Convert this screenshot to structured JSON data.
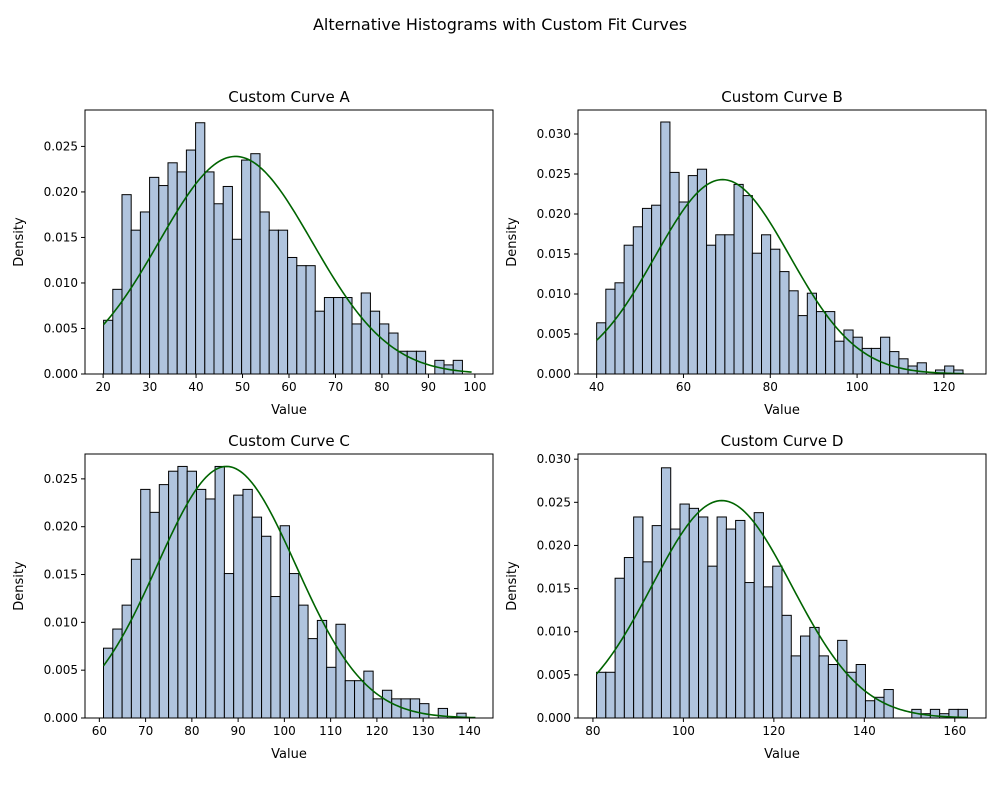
{
  "figure": {
    "suptitle": "Alternative Histograms with Custom Fit Curves",
    "bar_fill": "#b0c4de",
    "bar_edge": "#000000",
    "curve_color": "#006400"
  },
  "chart_data": [
    {
      "type": "histogram",
      "title": "Custom Curve A",
      "xlabel": "Value",
      "ylabel": "Density",
      "xlim": [
        16.1,
        103.9
      ],
      "ylim": [
        0,
        0.029
      ],
      "xticks": [
        "20",
        "30",
        "40",
        "50",
        "60",
        "70",
        "80",
        "90",
        "100"
      ],
      "yticks": [
        "0.000",
        "0.005",
        "0.010",
        "0.015",
        "0.020",
        "0.025"
      ],
      "bins": {
        "start": 20.1,
        "width": 1.98,
        "values": [
          0.0059,
          0.0093,
          0.0197,
          0.0158,
          0.0178,
          0.0216,
          0.0207,
          0.0232,
          0.0222,
          0.0246,
          0.0276,
          0.0222,
          0.0187,
          0.0206,
          0.0148,
          0.0235,
          0.0242,
          0.0178,
          0.0158,
          0.0158,
          0.0128,
          0.0119,
          0.0119,
          0.0069,
          0.0084,
          0.0084,
          0.0084,
          0.0055,
          0.0089,
          0.0069,
          0.0055,
          0.0045,
          0.0025,
          0.0025,
          0.0025,
          0.0,
          0.0015,
          0.001,
          0.0015,
          0.0
        ]
      },
      "fit_curve": {
        "name": "",
        "shape": "gaussian",
        "mean": 48.5,
        "sd": 16.5,
        "peak": 0.0239,
        "range": [
          20.1,
          99.3
        ]
      }
    },
    {
      "type": "histogram",
      "title": "Custom Curve B",
      "xlabel": "Value",
      "ylabel": "Density",
      "xlim": [
        35.7,
        129.7
      ],
      "ylim": [
        0,
        0.033
      ],
      "xticks": [
        "40",
        "60",
        "80",
        "100",
        "120"
      ],
      "yticks": [
        "0.000",
        "0.005",
        "0.010",
        "0.015",
        "0.020",
        "0.025",
        "0.030"
      ],
      "bins": {
        "start": 40.0,
        "width": 2.11,
        "values": [
          0.0064,
          0.0106,
          0.0114,
          0.0161,
          0.0184,
          0.0207,
          0.0211,
          0.0315,
          0.0252,
          0.0215,
          0.0248,
          0.0256,
          0.0161,
          0.0174,
          0.0174,
          0.0237,
          0.0223,
          0.0151,
          0.0174,
          0.0156,
          0.0128,
          0.0104,
          0.0073,
          0.0101,
          0.0078,
          0.0078,
          0.0041,
          0.0055,
          0.0046,
          0.0032,
          0.0032,
          0.0046,
          0.0028,
          0.0019,
          0.001,
          0.0014,
          0.0,
          0.0005,
          0.001,
          0.0005
        ]
      },
      "fit_curve": {
        "name": "",
        "shape": "gaussian",
        "mean": 69.0,
        "sd": 15.5,
        "peak": 0.0243,
        "range": [
          40.0,
          124.6
        ]
      }
    },
    {
      "type": "histogram",
      "title": "Custom Curve C",
      "xlabel": "Value",
      "ylabel": "Density",
      "xlim": [
        56.9,
        145.1
      ],
      "ylim": [
        0,
        0.0276
      ],
      "xticks": [
        "60",
        "70",
        "80",
        "90",
        "100",
        "110",
        "120",
        "130",
        "140"
      ],
      "yticks": [
        "0.000",
        "0.005",
        "0.010",
        "0.015",
        "0.020",
        "0.025"
      ],
      "bins": {
        "start": 60.9,
        "width": 2.01,
        "values": [
          0.0073,
          0.0093,
          0.0118,
          0.0166,
          0.0239,
          0.0215,
          0.0244,
          0.0258,
          0.0263,
          0.0258,
          0.0239,
          0.0229,
          0.0263,
          0.0151,
          0.0233,
          0.0239,
          0.021,
          0.019,
          0.0127,
          0.0201,
          0.0151,
          0.0118,
          0.0083,
          0.0102,
          0.0053,
          0.0098,
          0.0039,
          0.0039,
          0.0049,
          0.002,
          0.0029,
          0.002,
          0.002,
          0.002,
          0.0015,
          0.0,
          0.001,
          0.0,
          0.0005,
          0.0
        ]
      },
      "fit_curve": {
        "name": "",
        "shape": "gaussian",
        "mean": 87.5,
        "sd": 15.0,
        "peak": 0.0263,
        "range": [
          60.9,
          141.3
        ]
      }
    },
    {
      "type": "histogram",
      "title": "Custom Curve D",
      "xlabel": "Value",
      "ylabel": "Density",
      "xlim": [
        76.7,
        166.9
      ],
      "ylim": [
        0,
        0.0306
      ],
      "xticks": [
        "80",
        "100",
        "120",
        "140",
        "160"
      ],
      "yticks": [
        "0.000",
        "0.005",
        "0.010",
        "0.015",
        "0.020",
        "0.025",
        "0.030"
      ],
      "bins": {
        "start": 80.8,
        "width": 2.05,
        "values": [
          0.0053,
          0.0053,
          0.0162,
          0.0186,
          0.0233,
          0.0181,
          0.0223,
          0.029,
          0.0219,
          0.0248,
          0.0243,
          0.0233,
          0.0176,
          0.0233,
          0.0219,
          0.0229,
          0.0157,
          0.0238,
          0.0152,
          0.0176,
          0.0119,
          0.0072,
          0.0095,
          0.0105,
          0.0072,
          0.0062,
          0.009,
          0.0053,
          0.0062,
          0.002,
          0.0024,
          0.0033,
          0.0,
          0.0,
          0.001,
          0.0005,
          0.001,
          0.0005,
          0.001,
          0.001
        ]
      },
      "fit_curve": {
        "name": "",
        "shape": "gaussian",
        "mean": 108.5,
        "sd": 15.5,
        "peak": 0.0252,
        "range": [
          80.8,
          162.8
        ]
      }
    }
  ]
}
